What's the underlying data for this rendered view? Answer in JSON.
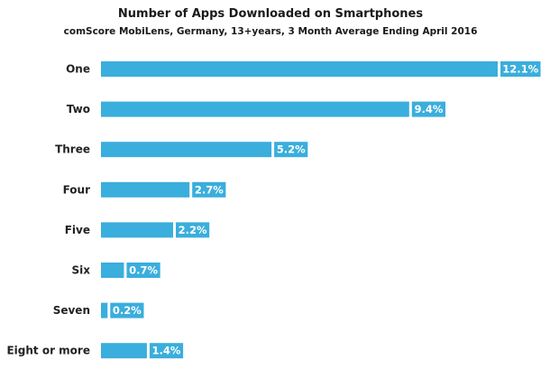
{
  "chart_data": {
    "type": "bar",
    "orientation": "horizontal",
    "title": "Number of Apps Downloaded on Smartphones",
    "subtitle": "comScore MobiLens,  Germany, 13+years, 3 Month  Average Ending  April 2016",
    "xlabel": "",
    "ylabel": "",
    "categories": [
      "One",
      "Two",
      "Three",
      "Four",
      "Five",
      "Six",
      "Seven",
      "Eight or more"
    ],
    "values": [
      12.1,
      9.4,
      5.2,
      2.7,
      2.2,
      0.7,
      0.2,
      1.4
    ],
    "value_labels": [
      "12.1%",
      "9.4%",
      "5.2%",
      "2.7%",
      "2.2%",
      "0.7%",
      "0.2%",
      "1.4%"
    ],
    "unit": "%",
    "xlim": [
      0,
      12.1
    ],
    "grid": false,
    "legend": "none",
    "bar_color": "#3aaedc",
    "label_box_color": "#3aaedc"
  }
}
